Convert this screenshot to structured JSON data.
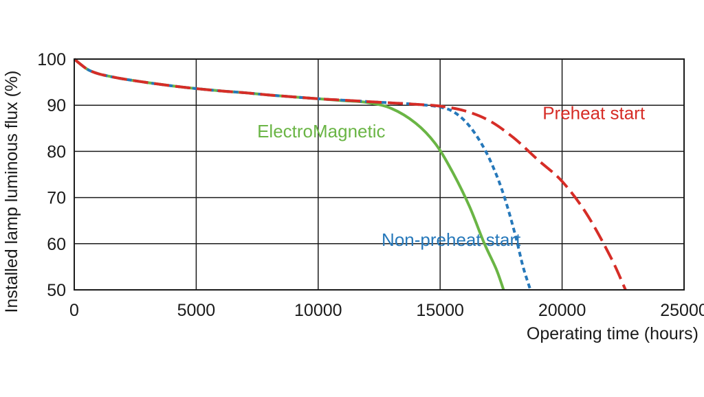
{
  "chart_data": {
    "type": "line",
    "xlabel": "Operating time (hours)",
    "ylabel": "Installed lamp luminous flux  (%)",
    "xlim": [
      0,
      25000
    ],
    "ylim": [
      50,
      100
    ],
    "xticks": [
      "0",
      "5000",
      "10000",
      "15000",
      "20000",
      "25000"
    ],
    "yticks": [
      "50",
      "60",
      "70",
      "80",
      "90",
      "100"
    ],
    "grid": true,
    "legend": "inline labels",
    "series": [
      {
        "name": "ElectroMagnetic",
        "color": "#6ab545",
        "style": "solid",
        "label_at": [
          7500,
          83
        ],
        "x": [
          0,
          300,
          600,
          1000,
          1500,
          2000,
          3000,
          4000,
          5000,
          6000,
          7000,
          8000,
          9000,
          10000,
          11000,
          12000,
          13000,
          14000,
          14800,
          15500,
          16200,
          16800,
          17300,
          17600
        ],
        "y": [
          100,
          98.7,
          97.6,
          96.8,
          96.2,
          95.7,
          94.9,
          94.2,
          93.6,
          93.1,
          92.7,
          92.2,
          91.8,
          91.4,
          91.0,
          90.6,
          89.3,
          86.1,
          81.7,
          75.6,
          68.1,
          60.2,
          54.5,
          50
        ]
      },
      {
        "name": "Non-preheat start",
        "color": "#2678ba",
        "style": "dashed",
        "label_at": [
          12600,
          59.5
        ],
        "x": [
          0,
          300,
          600,
          1000,
          1500,
          2000,
          3000,
          4000,
          5000,
          6000,
          7000,
          8000,
          9000,
          10000,
          11000,
          12000,
          13000,
          14000,
          15000,
          15600,
          16200,
          16800,
          17300,
          17700,
          18100,
          18400,
          18700
        ],
        "y": [
          100,
          98.7,
          97.6,
          96.8,
          96.2,
          95.7,
          94.9,
          94.2,
          93.6,
          93.1,
          92.7,
          92.2,
          91.8,
          91.4,
          91.1,
          90.8,
          90.5,
          90.2,
          89.6,
          88.4,
          85.5,
          80.7,
          75.0,
          69.0,
          61.5,
          55.0,
          50
        ]
      },
      {
        "name": "Preheat start",
        "color": "#d62d27",
        "style": "longdash",
        "label_at": [
          19200,
          87
        ],
        "x": [
          0,
          300,
          600,
          1000,
          1500,
          2000,
          3000,
          4000,
          5000,
          6000,
          7000,
          8000,
          9000,
          10000,
          11000,
          12000,
          13000,
          14000,
          15000,
          16000,
          17000,
          18000,
          19000,
          20000,
          21000,
          22000,
          22600
        ],
        "y": [
          100,
          98.7,
          97.6,
          96.8,
          96.2,
          95.7,
          94.9,
          94.2,
          93.6,
          93.1,
          92.7,
          92.2,
          91.8,
          91.4,
          91.1,
          90.8,
          90.5,
          90.2,
          89.8,
          88.8,
          86.7,
          83.0,
          78.2,
          73.5,
          66.5,
          57.0,
          50
        ]
      }
    ]
  }
}
